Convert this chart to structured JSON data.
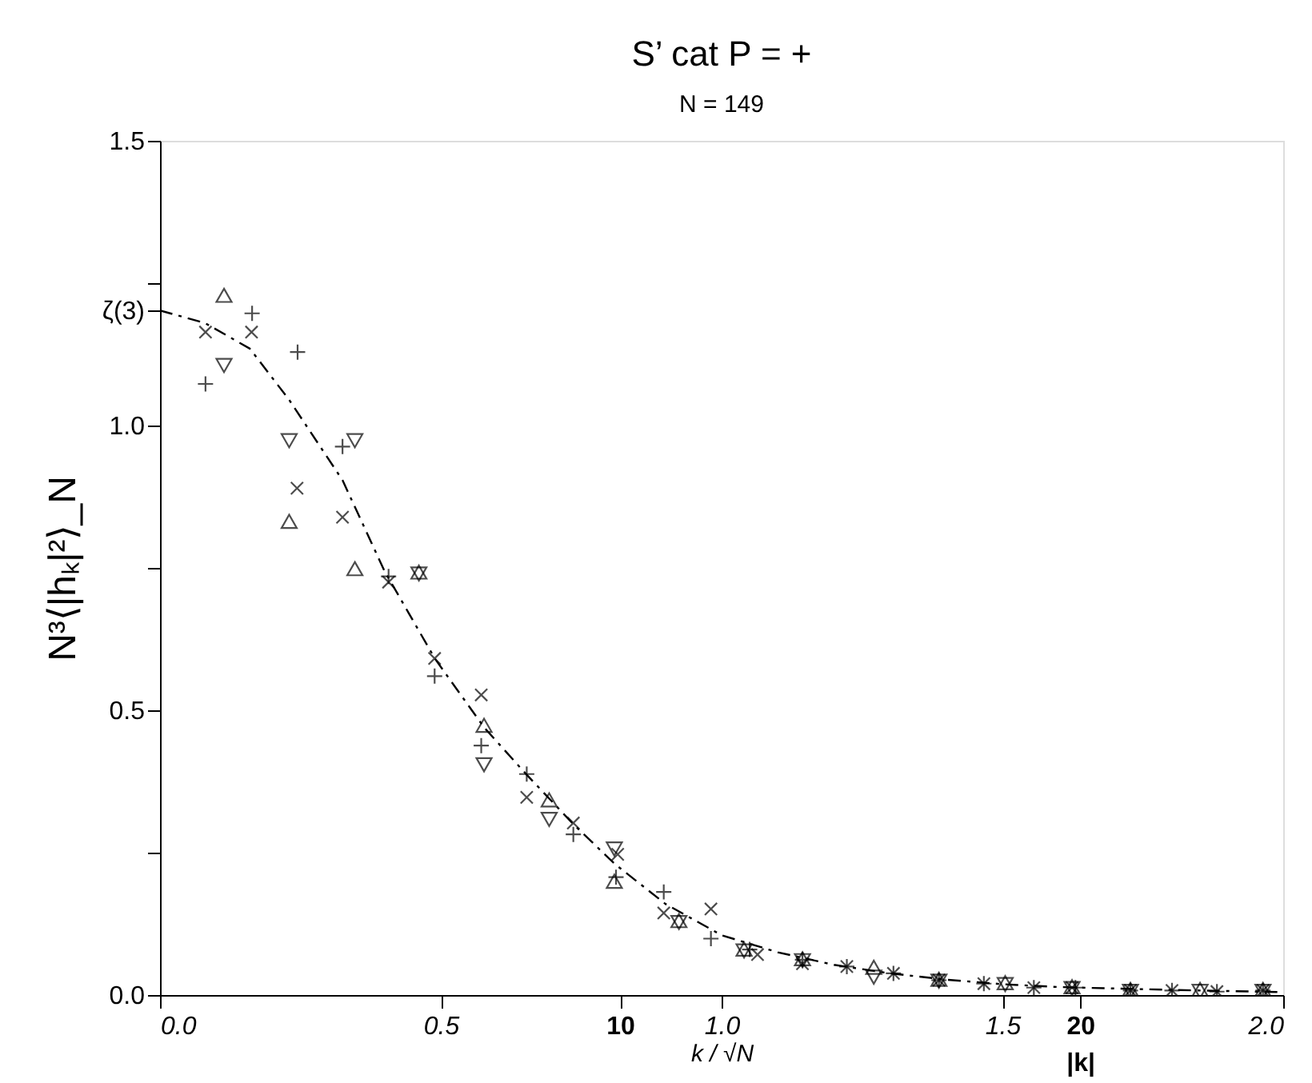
{
  "chart_data": {
    "type": "scatter",
    "title": "S’ cat  P = +",
    "subtitle": "N = 149",
    "xlabel": "k / √N",
    "ylabel": "N³⟨|hₖ|²⟩_N",
    "x2label": "|k|",
    "xlim": [
      0,
      2
    ],
    "ylim": [
      0,
      1.5
    ],
    "x2lim": [
      0,
      24.413
    ],
    "xticks": [
      {
        "value": 0,
        "label": "0.0"
      },
      0.5,
      {
        "value": 1,
        "label": "1.0"
      },
      1.5,
      {
        "value": 2,
        "label": "2.0"
      }
    ],
    "x2ticks": [
      10,
      20
    ],
    "yticks": [
      {
        "value": 0,
        "label": "0.0"
      },
      {
        "value": 0.25,
        "label": null
      },
      0.5,
      {
        "value": 0.75,
        "label": null
      },
      {
        "value": 1,
        "label": "1.0"
      },
      {
        "value": 1.202,
        "label": "ζ(3)"
      },
      {
        "value": 1.25,
        "label": null
      },
      1.5
    ],
    "grid": false,
    "series": [
      {
        "type": "line",
        "color": "#000000",
        "line_style": "dashed",
        "x": [
          0,
          0.08,
          0.16,
          0.23,
          0.325,
          0.4,
          0.49,
          0.577,
          0.65,
          0.736,
          0.81,
          0.9,
          1.0,
          1.1,
          1.2,
          1.3,
          1.4,
          1.5,
          1.6,
          1.8,
          2.0
        ],
        "values": [
          1.202,
          1.18,
          1.135,
          1.045,
          0.904,
          0.744,
          0.59,
          0.47,
          0.39,
          0.3,
          0.23,
          0.16,
          0.105,
          0.075,
          0.053,
          0.038,
          0.027,
          0.019,
          0.014,
          0.009,
          0.005
        ]
      },
      {
        "color": "#000000",
        "marker": "cross",
        "x": [
          0.164,
          0.245,
          0.081,
          0.325,
          0.407,
          0.489,
          0.572,
          0.653,
          0.736,
          0.812,
          0.897,
          0.981,
          1.05,
          1.144,
          1.223,
          1.306,
          1.387,
          1.467,
          1.556,
          1.63,
          1.728,
          1.802,
          1.882,
          1.964
        ],
        "values": [
          1.197,
          1.129,
          1.073,
          0.963,
          0.735,
          0.56,
          0.438,
          0.388,
          0.282,
          0.207,
          0.181,
          0.099,
          0.08,
          0.062,
          0.05,
          0.038,
          0.026,
          0.02,
          0.013,
          0.013,
          0.008,
          0.008,
          0.006,
          0.008
        ]
      },
      {
        "color": "#000000",
        "marker": "x",
        "x": [
          0.081,
          0.163,
          0.244,
          0.325,
          0.407,
          0.489,
          0.572,
          0.653,
          0.736,
          0.815,
          0.897,
          0.981,
          1.064,
          1.144,
          1.223,
          1.306,
          1.387,
          1.467,
          1.556,
          1.624,
          1.728,
          1.802,
          1.882,
          1.964
        ],
        "values": [
          1.164,
          1.164,
          0.89,
          0.839,
          0.725,
          0.591,
          0.527,
          0.347,
          0.302,
          0.247,
          0.144,
          0.151,
          0.071,
          0.055,
          0.05,
          0.038,
          0.026,
          0.02,
          0.013,
          0.013,
          0.008,
          0.008,
          0.006,
          0.008
        ]
      },
      {
        "color": "#000000",
        "marker": "triangle",
        "x": [
          0.114,
          0.23,
          0.347,
          0.461,
          0.577,
          0.693,
          0.809,
          0.924,
          1.04,
          1.144,
          1.271,
          1.387,
          1.505,
          1.624,
          1.728,
          1.852,
          1.964
        ],
        "values": [
          1.227,
          0.83,
          0.747,
          0.741,
          0.472,
          0.341,
          0.198,
          0.129,
          0.079,
          0.062,
          0.047,
          0.026,
          0.02,
          0.013,
          0.008,
          0.008,
          0.008
        ]
      },
      {
        "color": "#000000",
        "marker": "triangle-down",
        "x": [
          0.114,
          0.23,
          0.347,
          0.461,
          0.577,
          0.693,
          0.809,
          0.924,
          1.04,
          1.144,
          1.271,
          1.387,
          1.505,
          1.624,
          1.728,
          1.852,
          1.964
        ],
        "values": [
          1.107,
          0.975,
          0.975,
          0.741,
          0.406,
          0.31,
          0.258,
          0.129,
          0.079,
          0.062,
          0.033,
          0.026,
          0.02,
          0.013,
          0.008,
          0.008,
          0.008
        ]
      }
    ]
  }
}
